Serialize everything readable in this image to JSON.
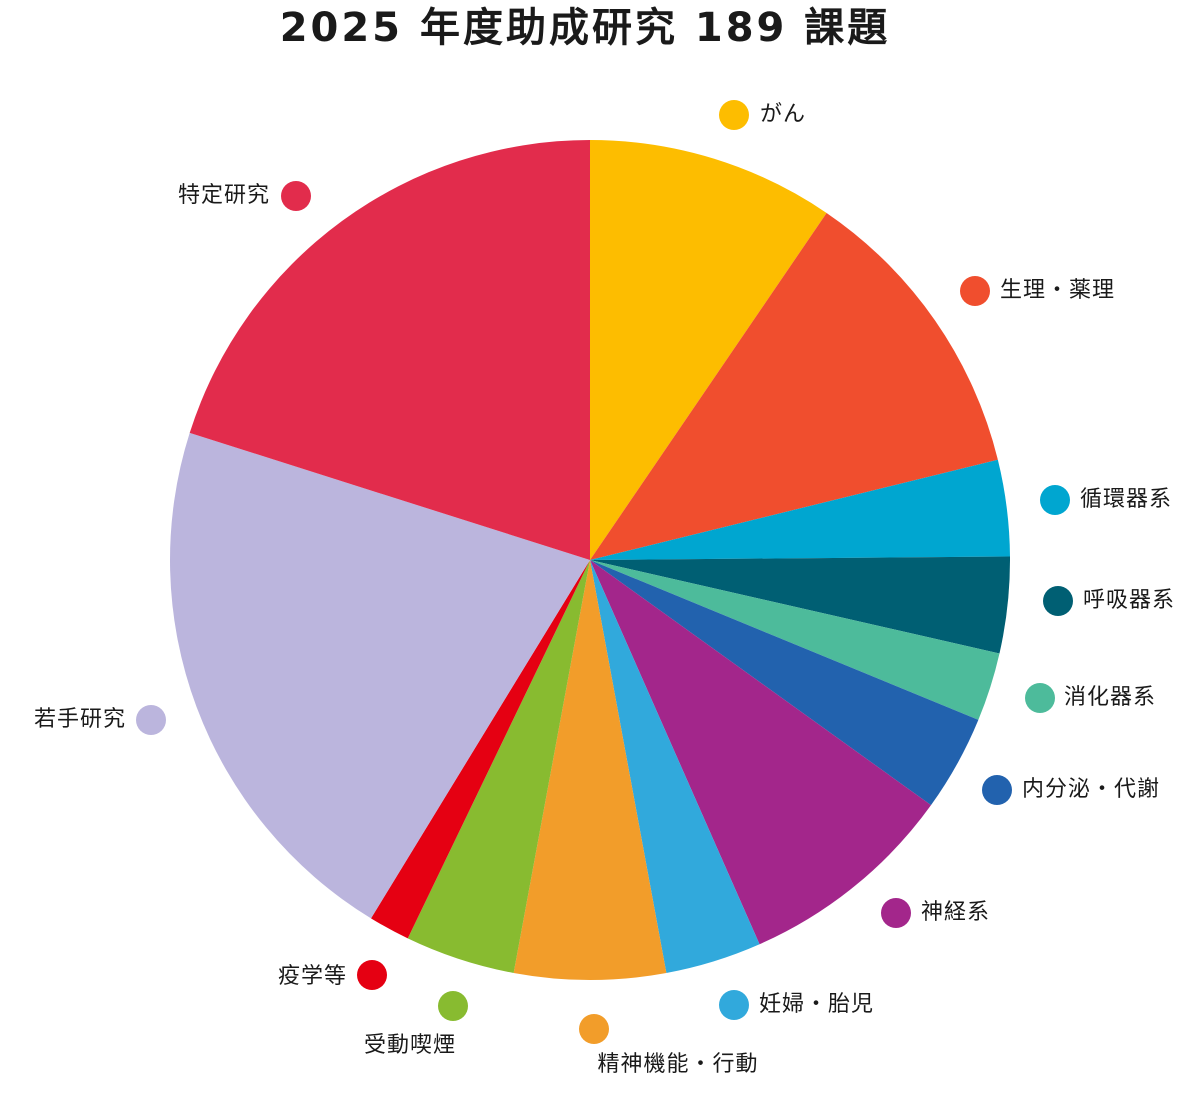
{
  "chart_data": {
    "type": "pie",
    "title": "2025 年度助成研究 189 課題",
    "categories": [
      "がん",
      "生理・薬理",
      "循環器系",
      "呼吸器系",
      "消化器系",
      "内分泌・代謝",
      "神経系",
      "妊婦・胎児",
      "精神機能・行動",
      "受動喫煙",
      "疫学等",
      "若手研究",
      "特定研究"
    ],
    "values": [
      18,
      22,
      7,
      7,
      5,
      7,
      16,
      7,
      11,
      8,
      3,
      40,
      38
    ],
    "colors": [
      "#fdbd00",
      "#f04e2e",
      "#00a6d0",
      "#005f73",
      "#4dbb9b",
      "#2262ae",
      "#a3268b",
      "#31a9dc",
      "#f29d2a",
      "#88bb30",
      "#e50012",
      "#bbb5dd",
      "#e22c4c"
    ]
  }
}
